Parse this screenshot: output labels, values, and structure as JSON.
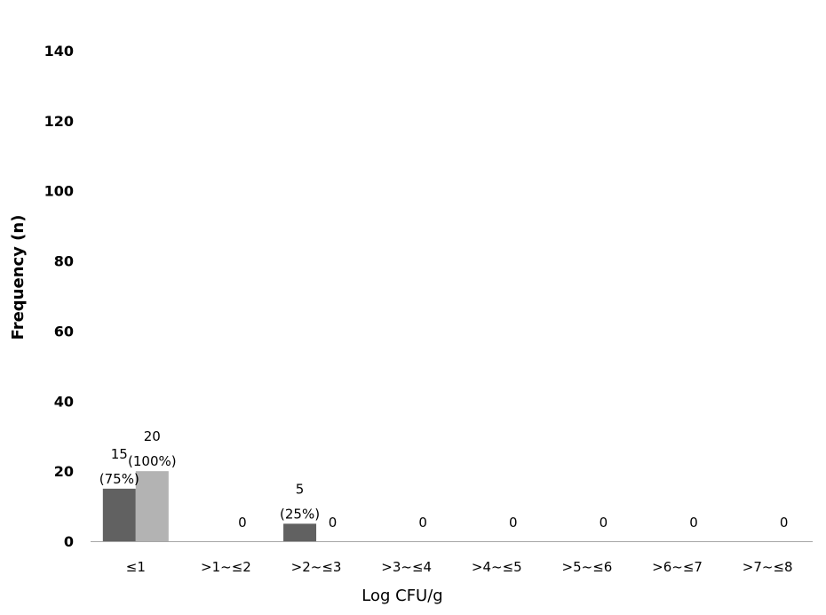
{
  "chart_data": {
    "type": "bar",
    "title": "",
    "xlabel": "Log CFU/g",
    "ylabel": "Frequency (n)",
    "ylim": [
      0,
      140
    ],
    "yticks": [
      0,
      20,
      40,
      60,
      80,
      100,
      120,
      140
    ],
    "grid": false,
    "legend": "none",
    "categories": [
      "≤1",
      ">1~≤2",
      ">2~≤3",
      ">3~≤4",
      ">4~≤5",
      ">5~≤6",
      ">6~≤7",
      ">7~≤8"
    ],
    "series": [
      {
        "color": "#616161",
        "values": [
          15,
          0,
          5,
          0,
          0,
          0,
          0,
          0
        ],
        "labels": [
          "15",
          "",
          "5",
          "",
          "",
          "",
          "",
          ""
        ],
        "sublabels": [
          "(75%)",
          "",
          "(25%)",
          "",
          "",
          "",
          "",
          ""
        ]
      },
      {
        "color": "#b3b3b3",
        "values": [
          20,
          0,
          0,
          0,
          0,
          0,
          0,
          0
        ],
        "labels": [
          "20",
          "0",
          "0",
          "0",
          "0",
          "0",
          "0",
          "0"
        ],
        "sublabels": [
          "(100%)",
          "",
          "",
          "",
          "",
          "",
          "",
          ""
        ]
      }
    ]
  }
}
